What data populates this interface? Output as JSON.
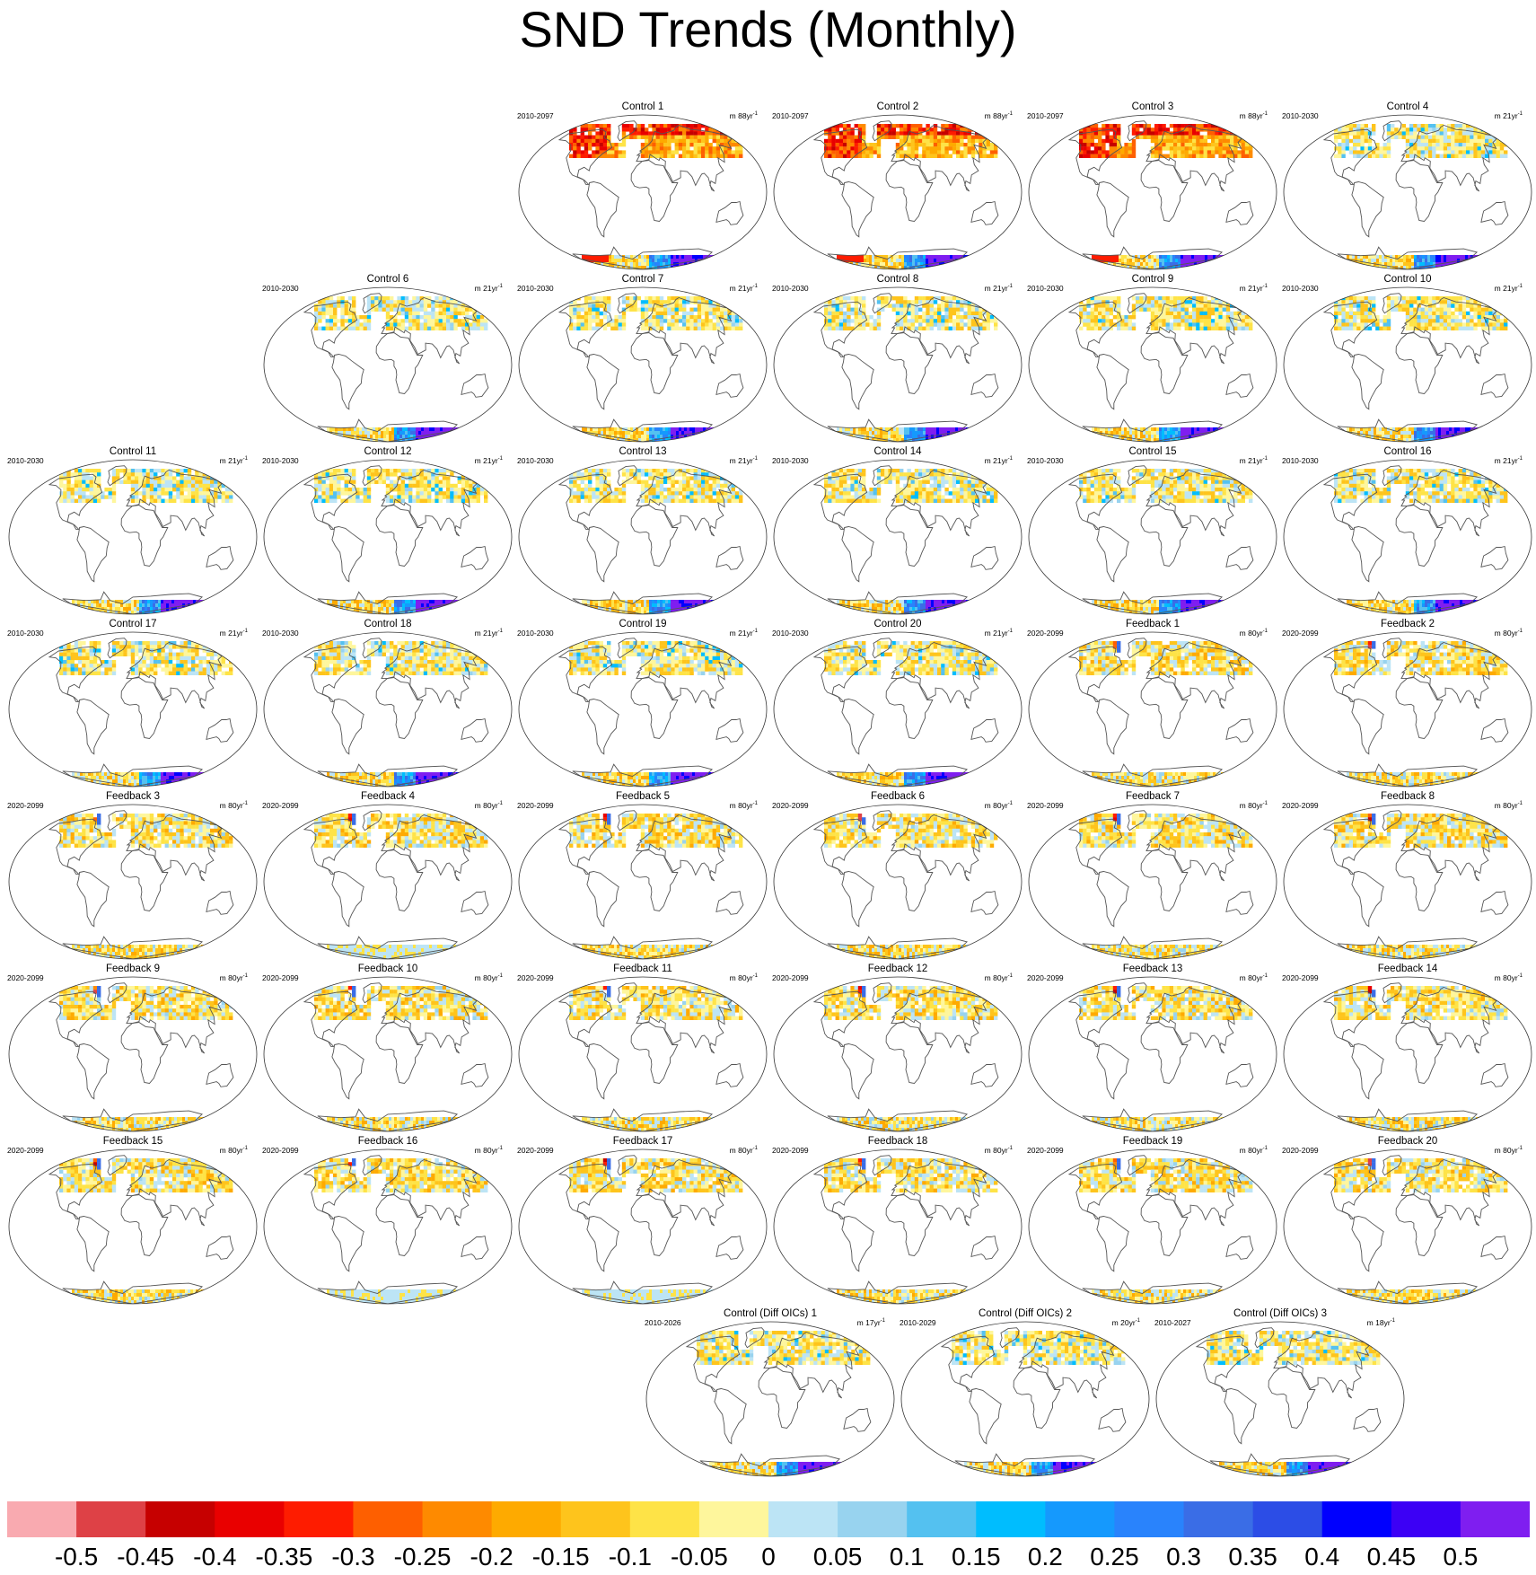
{
  "title": "SND Trends (Monthly)",
  "chart_data": {
    "type": "heatmap",
    "title": "SND Trends (Monthly)",
    "projection": "global map panels",
    "colorbar": {
      "ticks": [
        "-0.5",
        "-0.45",
        "-0.4",
        "-0.35",
        "-0.3",
        "-0.25",
        "-0.2",
        "-0.15",
        "-0.1",
        "-0.05",
        "0",
        "0.05",
        "0.1",
        "0.15",
        "0.2",
        "0.25",
        "0.3",
        "0.35",
        "0.4",
        "0.45",
        "0.5"
      ],
      "colors": [
        "#f9aab0",
        "#de4146",
        "#c60000",
        "#e90000",
        "#fe1c00",
        "#fe5f00",
        "#fe8a00",
        "#feaa00",
        "#fec41c",
        "#fee347",
        "#fef69c",
        "#bce4f5",
        "#98d3ef",
        "#54c1f0",
        "#00bdfe",
        "#1599fd",
        "#2983fc",
        "#3a6de6",
        "#2c4de6",
        "#0000fe",
        "#3c00f5",
        "#7f1ef0"
      ],
      "position": "bottom"
    },
    "panels": [
      {
        "title": "Control 1",
        "period": "2010-2097",
        "unit": "m 88yr",
        "unit_sup": "-1"
      },
      {
        "title": "Control 2",
        "period": "2010-2097",
        "unit": "m 88yr",
        "unit_sup": "-1"
      },
      {
        "title": "Control 3",
        "period": "2010-2097",
        "unit": "m 88yr",
        "unit_sup": "-1"
      },
      {
        "title": "Control 4",
        "period": "2010-2030",
        "unit": "m 21yr",
        "unit_sup": "-1"
      },
      {
        "title": "Control 6",
        "period": "2010-2030",
        "unit": "m 21yr",
        "unit_sup": "-1"
      },
      {
        "title": "Control 7",
        "period": "2010-2030",
        "unit": "m 21yr",
        "unit_sup": "-1"
      },
      {
        "title": "Control 8",
        "period": "2010-2030",
        "unit": "m 21yr",
        "unit_sup": "-1"
      },
      {
        "title": "Control 9",
        "period": "2010-2030",
        "unit": "m 21yr",
        "unit_sup": "-1"
      },
      {
        "title": "Control 10",
        "period": "2010-2030",
        "unit": "m 21yr",
        "unit_sup": "-1"
      },
      {
        "title": "Control 11",
        "period": "2010-2030",
        "unit": "m 21yr",
        "unit_sup": "-1"
      },
      {
        "title": "Control 12",
        "period": "2010-2030",
        "unit": "m 21yr",
        "unit_sup": "-1"
      },
      {
        "title": "Control 13",
        "period": "2010-2030",
        "unit": "m 21yr",
        "unit_sup": "-1"
      },
      {
        "title": "Control 14",
        "period": "2010-2030",
        "unit": "m 21yr",
        "unit_sup": "-1"
      },
      {
        "title": "Control 15",
        "period": "2010-2030",
        "unit": "m 21yr",
        "unit_sup": "-1"
      },
      {
        "title": "Control 16",
        "period": "2010-2030",
        "unit": "m 21yr",
        "unit_sup": "-1"
      },
      {
        "title": "Control 17",
        "period": "2010-2030",
        "unit": "m 21yr",
        "unit_sup": "-1"
      },
      {
        "title": "Control 18",
        "period": "2010-2030",
        "unit": "m 21yr",
        "unit_sup": "-1"
      },
      {
        "title": "Control 19",
        "period": "2010-2030",
        "unit": "m 21yr",
        "unit_sup": "-1"
      },
      {
        "title": "Control 20",
        "period": "2010-2030",
        "unit": "m 21yr",
        "unit_sup": "-1"
      },
      {
        "title": "Feedback 1",
        "period": "2020-2099",
        "unit": "m 80yr",
        "unit_sup": "-1"
      },
      {
        "title": "Feedback 2",
        "period": "2020-2099",
        "unit": "m 80yr",
        "unit_sup": "-1"
      },
      {
        "title": "Feedback 3",
        "period": "2020-2099",
        "unit": "m 80yr",
        "unit_sup": "-1"
      },
      {
        "title": "Feedback 4",
        "period": "2020-2099",
        "unit": "m 80yr",
        "unit_sup": "-1"
      },
      {
        "title": "Feedback 5",
        "period": "2020-2099",
        "unit": "m 80yr",
        "unit_sup": "-1"
      },
      {
        "title": "Feedback 6",
        "period": "2020-2099",
        "unit": "m 80yr",
        "unit_sup": "-1"
      },
      {
        "title": "Feedback 7",
        "period": "2020-2099",
        "unit": "m 80yr",
        "unit_sup": "-1"
      },
      {
        "title": "Feedback 8",
        "period": "2020-2099",
        "unit": "m 80yr",
        "unit_sup": "-1"
      },
      {
        "title": "Feedback 9",
        "period": "2020-2099",
        "unit": "m 80yr",
        "unit_sup": "-1"
      },
      {
        "title": "Feedback 10",
        "period": "2020-2099",
        "unit": "m 80yr",
        "unit_sup": "-1"
      },
      {
        "title": "Feedback 11",
        "period": "2020-2099",
        "unit": "m 80yr",
        "unit_sup": "-1"
      },
      {
        "title": "Feedback 12",
        "period": "2020-2099",
        "unit": "m 80yr",
        "unit_sup": "-1"
      },
      {
        "title": "Feedback 13",
        "period": "2020-2099",
        "unit": "m 80yr",
        "unit_sup": "-1"
      },
      {
        "title": "Feedback 14",
        "period": "2020-2099",
        "unit": "m 80yr",
        "unit_sup": "-1"
      },
      {
        "title": "Feedback 15",
        "period": "2020-2099",
        "unit": "m 80yr",
        "unit_sup": "-1"
      },
      {
        "title": "Feedback 16",
        "period": "2020-2099",
        "unit": "m 80yr",
        "unit_sup": "-1"
      },
      {
        "title": "Feedback 17",
        "period": "2020-2099",
        "unit": "m 80yr",
        "unit_sup": "-1"
      },
      {
        "title": "Feedback 18",
        "period": "2020-2099",
        "unit": "m 80yr",
        "unit_sup": "-1"
      },
      {
        "title": "Feedback 19",
        "period": "2020-2099",
        "unit": "m 80yr",
        "unit_sup": "-1"
      },
      {
        "title": "Feedback 20",
        "period": "2020-2099",
        "unit": "m 80yr",
        "unit_sup": "-1"
      },
      {
        "title": "Control (Diff OICs) 1",
        "period": "2010-2026",
        "unit": "m 17yr",
        "unit_sup": "-1"
      },
      {
        "title": "Control (Diff OICs) 2",
        "period": "2010-2029",
        "unit": "m 20yr",
        "unit_sup": "-1"
      },
      {
        "title": "Control (Diff OICs) 3",
        "period": "2010-2027",
        "unit": "m 18yr",
        "unit_sup": "-1"
      }
    ]
  }
}
